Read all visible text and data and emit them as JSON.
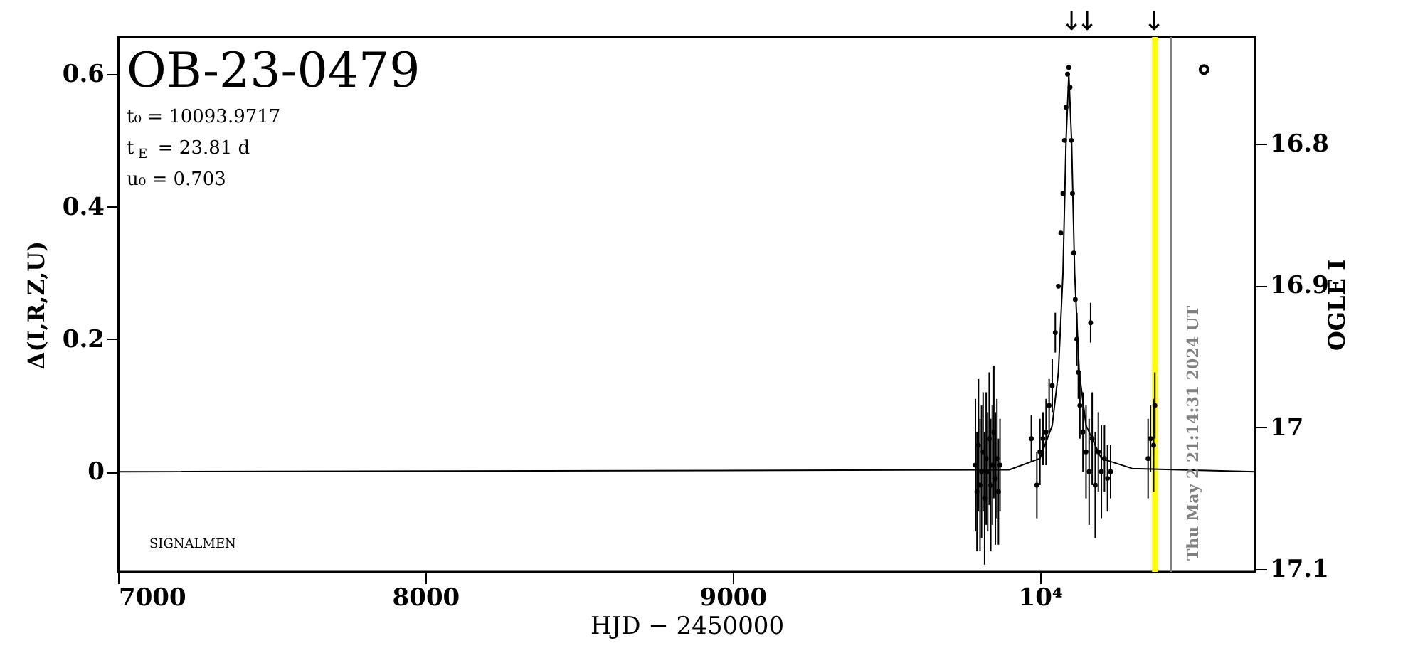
{
  "chart_data": {
    "type": "scatter",
    "title": "OB-23-0479",
    "xlabel": "HJD − 2450000",
    "ylabel": "Δ(I,R,Z,U)",
    "y2label": "OGLE I",
    "xlim": [
      7000,
      10700
    ],
    "xticks": [
      7000,
      8000,
      9000,
      {
        "value": 10000,
        "label": "10⁴"
      }
    ],
    "ylim": [
      -0.151,
      0.656
    ],
    "yticks": [
      0,
      0.2,
      0.4,
      0.6
    ],
    "y2lim": [
      17.102,
      16.725
    ],
    "y2ticks": [
      16.8,
      16.9,
      17,
      17.1
    ],
    "grid": false,
    "series": [
      {
        "type": "line",
        "line_style": "solid",
        "color": "#000000",
        "x": [
          7000,
          9900,
          10000,
          10040,
          10060,
          10075,
          10085,
          10094,
          10103,
          10113,
          10128,
          10150,
          10200,
          10300,
          10700
        ],
        "values": [
          0,
          0.003,
          0.02,
          0.07,
          0.15,
          0.3,
          0.5,
          0.6,
          0.5,
          0.3,
          0.15,
          0.07,
          0.02,
          0.005,
          0
        ]
      },
      {
        "marker": "circle",
        "color": "#000000",
        "x": [
          9790,
          9795,
          9800,
          9805,
          9810,
          9815,
          9820,
          9825,
          9830,
          9835,
          9840,
          9845,
          9850,
          9855,
          9860,
          9865,
          9870,
          9972,
          9990,
          10000,
          10010,
          10020,
          10030,
          10040,
          10050,
          10060,
          10068,
          10075,
          10080,
          10085,
          10090,
          10094,
          10098,
          10102,
          10106,
          10110,
          10115,
          10120,
          10125,
          10130,
          10140,
          10150,
          10160,
          10165,
          10170,
          10180,
          10190,
          10200,
          10210,
          10220,
          10230,
          10352,
          10360,
          10370,
          10374
        ],
        "values": [
          0.01,
          -0.03,
          0.04,
          -0.02,
          0.0,
          0.03,
          -0.04,
          0.02,
          0.0,
          0.05,
          -0.02,
          0.01,
          0.06,
          -0.01,
          0.02,
          -0.03,
          0.01,
          0.05,
          -0.02,
          0.03,
          0.05,
          0.06,
          0.1,
          0.13,
          0.21,
          0.28,
          0.36,
          0.42,
          0.5,
          0.55,
          0.6,
          0.61,
          0.58,
          0.5,
          0.42,
          0.33,
          0.26,
          0.2,
          0.15,
          0.1,
          0.06,
          0.03,
          0.0,
          0.225,
          0.05,
          -0.02,
          0.03,
          0.0,
          0.02,
          -0.01,
          0.0,
          0.02,
          0.05,
          0.04,
          0.1
        ],
        "errors": [
          0.1,
          0.09,
          0.1,
          0.1,
          0.1,
          0.09,
          0.1,
          0.1,
          0.09,
          0.1,
          0.1,
          0.09,
          0.1,
          0.1,
          0.09,
          0.08,
          0.07,
          0.035,
          0.05,
          0.05,
          0.04,
          0.05,
          0.04,
          0.04,
          0.03,
          null,
          null,
          null,
          null,
          null,
          null,
          null,
          null,
          null,
          null,
          null,
          null,
          0.04,
          0.04,
          0.05,
          0.06,
          0.07,
          0.08,
          0.03,
          0.07,
          0.08,
          0.06,
          0.07,
          0.05,
          0.05,
          0.04,
          0.06,
          0.05,
          0.07,
          0.05
        ]
      },
      {
        "marker": "circle",
        "color": "#000000",
        "x": [
          10534
        ],
        "values": [
          0.607
        ]
      }
    ],
    "ref_lines": [
      {
        "axis": "x",
        "value": 10374,
        "color": "#ffff00"
      },
      {
        "axis": "x",
        "value": 10426,
        "color": "#808080"
      }
    ],
    "annotations": [
      "t₀ = 10093.9717",
      "t$_{E}$ = 23.81 d",
      "u₀ = 0.703",
      "SIGNALMEN",
      "Thu May  2 21:14:31 2024 UT",
      "↓",
      "↓",
      "↓"
    ]
  }
}
